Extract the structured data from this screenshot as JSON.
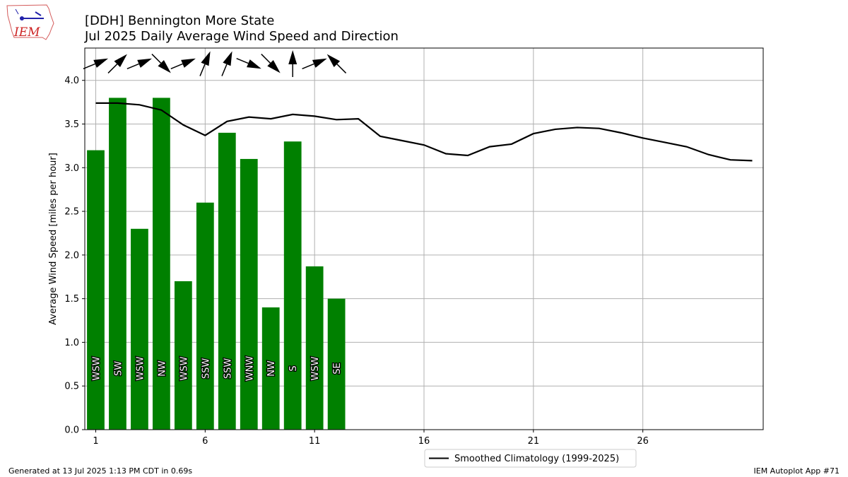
{
  "logo": {
    "text": "IEM"
  },
  "title": {
    "line1": "[DDH] Bennington More State",
    "line2": "Jul 2025 Daily Average Wind Speed and Direction"
  },
  "footer": {
    "left": "Generated at 13 Jul 2025 1:13 PM CDT in 0.69s",
    "right": "IEM Autoplot App #71"
  },
  "chart_data": {
    "type": "bar",
    "ylabel": "Average Wind Speed [miles per hour]",
    "xlim": [
      0.5,
      31.5
    ],
    "ylim": [
      0,
      4.37
    ],
    "grid": true,
    "legend_position": "bottom-center",
    "xticks": [
      1,
      6,
      11,
      16,
      21,
      26
    ],
    "yticks": [
      0.0,
      0.5,
      1.0,
      1.5,
      2.0,
      2.5,
      3.0,
      3.5,
      4.0
    ],
    "bar_color": "#008000",
    "bars": [
      {
        "day": 1,
        "value": 3.2,
        "direction": "WSW",
        "dir_deg": 247.5
      },
      {
        "day": 2,
        "value": 3.8,
        "direction": "SW",
        "dir_deg": 225
      },
      {
        "day": 3,
        "value": 2.3,
        "direction": "WSW",
        "dir_deg": 247.5
      },
      {
        "day": 4,
        "value": 3.8,
        "direction": "NW",
        "dir_deg": 315
      },
      {
        "day": 5,
        "value": 1.7,
        "direction": "WSW",
        "dir_deg": 247.5
      },
      {
        "day": 6,
        "value": 2.6,
        "direction": "SSW",
        "dir_deg": 202.5
      },
      {
        "day": 7,
        "value": 3.4,
        "direction": "SSW",
        "dir_deg": 202.5
      },
      {
        "day": 8,
        "value": 3.1,
        "direction": "WNW",
        "dir_deg": 292.5
      },
      {
        "day": 9,
        "value": 1.4,
        "direction": "NW",
        "dir_deg": 315
      },
      {
        "day": 10,
        "value": 3.3,
        "direction": "S",
        "dir_deg": 180
      },
      {
        "day": 11,
        "value": 1.87,
        "direction": "WSW",
        "dir_deg": 247.5
      },
      {
        "day": 12,
        "value": 1.5,
        "direction": "SE",
        "dir_deg": 135
      }
    ],
    "climatology": {
      "name": "Smoothed Climatology (1999-2025)",
      "color": "#000000",
      "x": [
        1,
        2,
        3,
        4,
        5,
        6,
        7,
        8,
        9,
        10,
        11,
        12,
        13,
        14,
        15,
        16,
        17,
        18,
        19,
        20,
        21,
        22,
        23,
        24,
        25,
        26,
        27,
        28,
        29,
        30,
        31
      ],
      "values": [
        3.74,
        3.74,
        3.72,
        3.66,
        3.49,
        3.37,
        3.53,
        3.58,
        3.56,
        3.61,
        3.59,
        3.55,
        3.56,
        3.36,
        3.31,
        3.26,
        3.16,
        3.14,
        3.24,
        3.27,
        3.39,
        3.44,
        3.46,
        3.45,
        3.4,
        3.34,
        3.29,
        3.24,
        3.15,
        3.09,
        3.08
      ]
    }
  }
}
